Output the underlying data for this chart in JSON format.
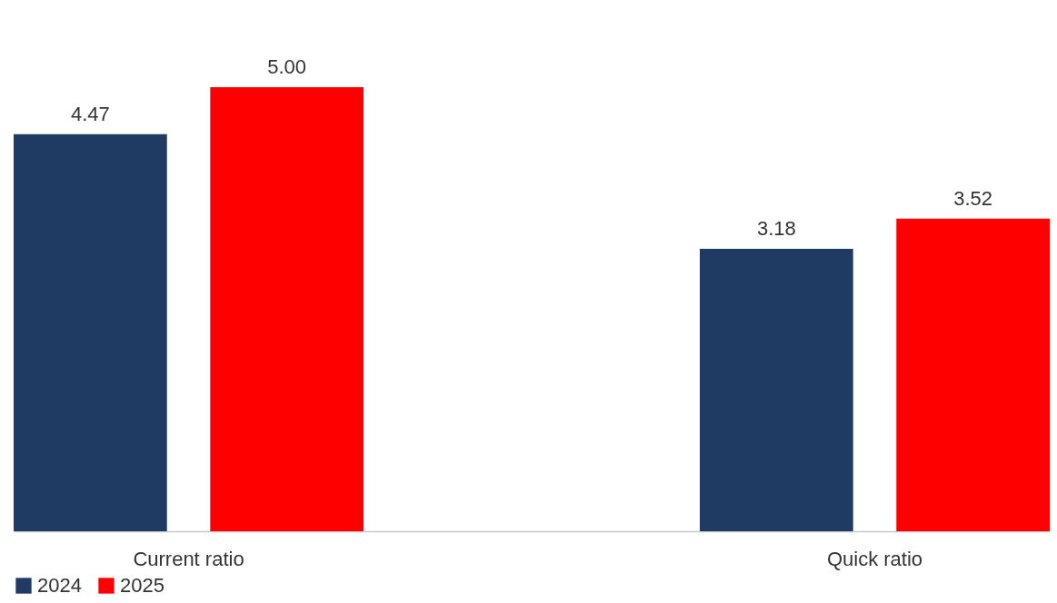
{
  "chart_data": {
    "type": "bar",
    "categories": [
      "Current ratio",
      "Quick ratio"
    ],
    "series": [
      {
        "name": "2024",
        "color": "#1f3b63",
        "values": [
          4.47,
          3.18
        ],
        "value_labels": [
          "4.47",
          "3.18"
        ]
      },
      {
        "name": "2025",
        "color": "#ff0000",
        "values": [
          5.0,
          3.52
        ],
        "value_labels": [
          "5.00",
          "3.52"
        ]
      }
    ],
    "legend": "bottom"
  }
}
